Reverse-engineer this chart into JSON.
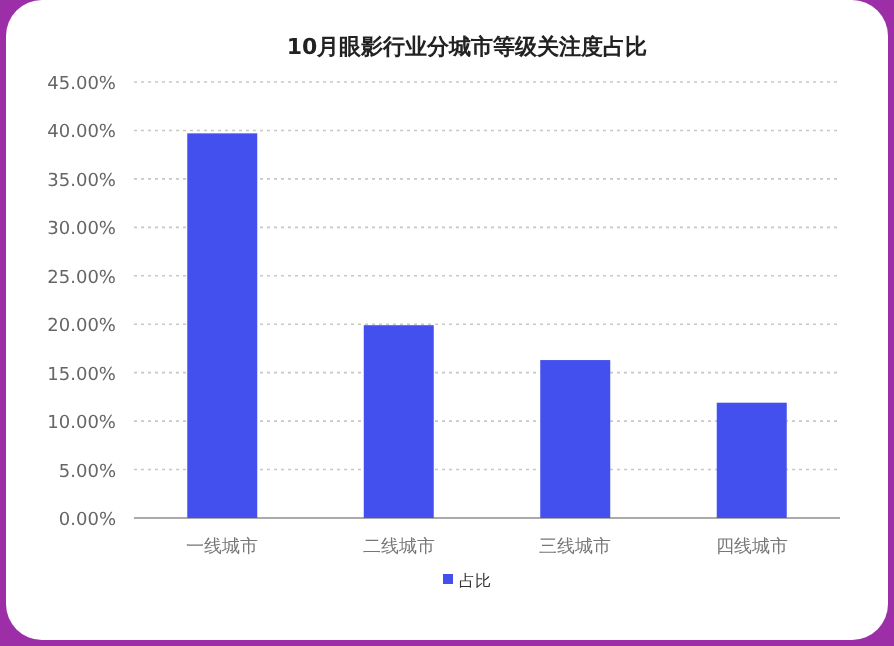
{
  "chart_data": {
    "type": "bar",
    "title": "10月眼影行业分城市等级关注度占比",
    "categories": [
      "一线城市",
      "二线城市",
      "三线城市",
      "四线城市"
    ],
    "series": [
      {
        "name": "占比",
        "color": "#4350ee",
        "values": [
          39.7,
          19.9,
          16.3,
          11.9
        ]
      }
    ],
    "ylim": [
      0,
      45
    ],
    "yticks": [
      {
        "value": 0,
        "label": "0.00%"
      },
      {
        "value": 5,
        "label": "5.00%"
      },
      {
        "value": 10,
        "label": "10.00%"
      },
      {
        "value": 15,
        "label": "15.00%"
      },
      {
        "value": 20,
        "label": "20.00%"
      },
      {
        "value": 25,
        "label": "25.00%"
      },
      {
        "value": 30,
        "label": "30.00%"
      },
      {
        "value": 35,
        "label": "35.00%"
      },
      {
        "value": 40,
        "label": "40.00%"
      },
      {
        "value": 45,
        "label": "45.00%"
      }
    ],
    "grid": "y",
    "legend": "bottom"
  }
}
